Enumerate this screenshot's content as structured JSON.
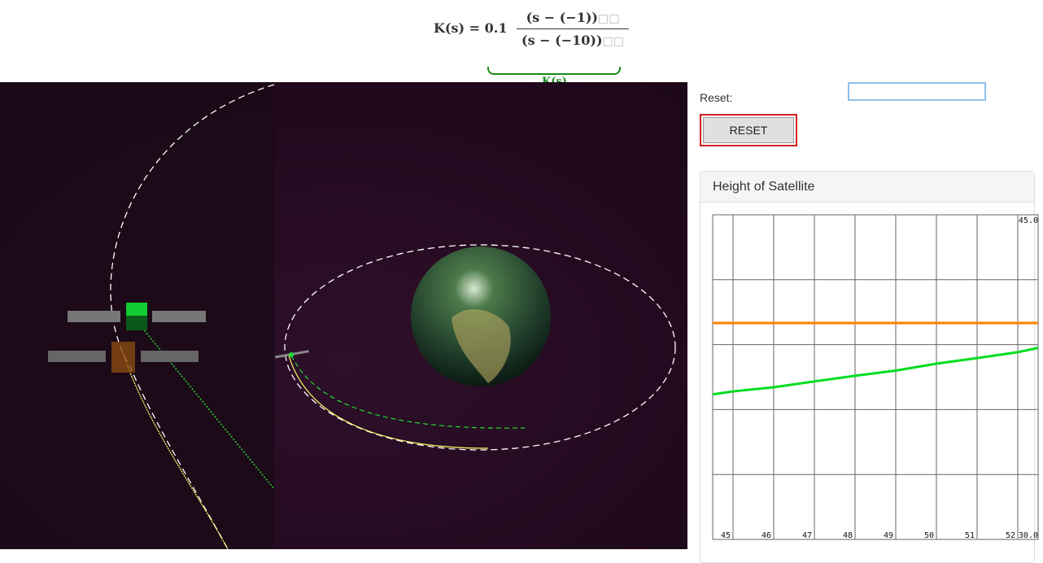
{
  "formula": {
    "lhs": "K(s) =",
    "gain": "0.1",
    "numerator": "(s − (−1))",
    "denominator": "(s − (−10))",
    "placeholder": "□□",
    "underbrace_label": "K(s)"
  },
  "controls": {
    "reset_label": "Reset:",
    "reset_button": "RESET"
  },
  "chart_data": {
    "type": "line",
    "title": "Height of Satellite",
    "x": [
      44.5,
      45,
      46,
      47,
      48,
      49,
      50,
      51,
      52,
      52.5
    ],
    "series": [
      {
        "color": "#ff8000",
        "values": [
          40,
          40,
          40,
          40,
          40,
          40,
          40,
          40,
          40,
          40
        ]
      },
      {
        "color": "#00dd22",
        "values": [
          36.7,
          36.84,
          37.03,
          37.3,
          37.56,
          37.8,
          38.12,
          38.38,
          38.65,
          38.85
        ]
      }
    ],
    "xlim": [
      44.5,
      52.5
    ],
    "xticks": [
      45,
      46,
      47,
      48,
      49,
      50,
      51,
      52
    ],
    "ylim": [
      30,
      45
    ],
    "yticks": [
      {
        "value": 30,
        "label": "30.0"
      },
      {
        "value": 45,
        "label": "45.0"
      }
    ],
    "ygrid": [
      30,
      33,
      36,
      39,
      42,
      45
    ],
    "grid": true
  }
}
